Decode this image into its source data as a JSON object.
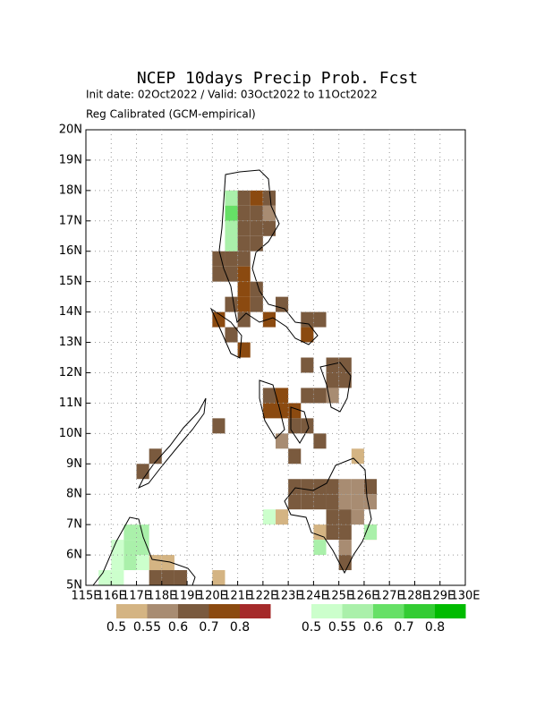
{
  "chart_data": {
    "type": "gridmap",
    "title": "NCEP 10days Precip Prob. Fcst",
    "subtitle": "Init date: 02Oct2022 / Valid: 03Oct2022 to 11Oct2022",
    "subtitle2": "Reg Calibrated (GCM-empirical)",
    "xlim": [
      115,
      130
    ],
    "ylim": [
      5,
      20
    ],
    "cell": 0.5,
    "grid": true,
    "xticks": [
      {
        "value": 115,
        "label": "115E"
      },
      {
        "value": 116,
        "label": "116E"
      },
      {
        "value": 117,
        "label": "117E"
      },
      {
        "value": 118,
        "label": "118E"
      },
      {
        "value": 119,
        "label": "119E"
      },
      {
        "value": 120,
        "label": "120E"
      },
      {
        "value": 121,
        "label": "121E"
      },
      {
        "value": 122,
        "label": "122E"
      },
      {
        "value": 123,
        "label": "123E"
      },
      {
        "value": 124,
        "label": "124E"
      },
      {
        "value": 125,
        "label": "125E"
      },
      {
        "value": 126,
        "label": "126E"
      },
      {
        "value": 127,
        "label": "127E"
      },
      {
        "value": 128,
        "label": "128E"
      },
      {
        "value": 129,
        "label": "129E"
      },
      {
        "value": 130,
        "label": "130E"
      }
    ],
    "yticks": [
      {
        "value": 5,
        "label": "5N"
      },
      {
        "value": 6,
        "label": "6N"
      },
      {
        "value": 7,
        "label": "7N"
      },
      {
        "value": 8,
        "label": "8N"
      },
      {
        "value": 9,
        "label": "9N"
      },
      {
        "value": 10,
        "label": "10N"
      },
      {
        "value": 11,
        "label": "11N"
      },
      {
        "value": 12,
        "label": "12N"
      },
      {
        "value": 13,
        "label": "13N"
      },
      {
        "value": 14,
        "label": "14N"
      },
      {
        "value": 15,
        "label": "15N"
      },
      {
        "value": 16,
        "label": "16N"
      },
      {
        "value": 17,
        "label": "17N"
      },
      {
        "value": 18,
        "label": "18N"
      },
      {
        "value": 19,
        "label": "19N"
      },
      {
        "value": 20,
        "label": "20N"
      }
    ],
    "series": [
      {
        "levels": [
          0.5,
          0.55,
          0.6,
          0.7,
          0.8
        ],
        "colors": [
          "#d4b483",
          "#a88c72",
          "#7a5a3e",
          "#8b4a10",
          "#a52a2a"
        ],
        "cells": [
          [
            120.5,
            17.5,
            0.5
          ],
          [
            121,
            17.5,
            0.6
          ],
          [
            121.5,
            17.5,
            0.7
          ],
          [
            122,
            17.5,
            0.6
          ],
          [
            121,
            17,
            0.6
          ],
          [
            121.5,
            17,
            0.6
          ],
          [
            122,
            17,
            0.55
          ],
          [
            121,
            16.5,
            0.6
          ],
          [
            121.5,
            16.5,
            0.6
          ],
          [
            122,
            16.5,
            0.6
          ],
          [
            120.5,
            16,
            0.55
          ],
          [
            121,
            16,
            0.6
          ],
          [
            121.5,
            16,
            0.6
          ],
          [
            120,
            15.5,
            0.6
          ],
          [
            120.5,
            15.5,
            0.6
          ],
          [
            121,
            15.5,
            0.6
          ],
          [
            120,
            15,
            0.6
          ],
          [
            120.5,
            15,
            0.6
          ],
          [
            121,
            15,
            0.7
          ],
          [
            121,
            14.5,
            0.7
          ],
          [
            121.5,
            14.5,
            0.6
          ],
          [
            120.5,
            14,
            0.6
          ],
          [
            121,
            14,
            0.7
          ],
          [
            121.5,
            14,
            0.6
          ],
          [
            122.5,
            14,
            0.6
          ],
          [
            120,
            13.5,
            0.7
          ],
          [
            121,
            13.5,
            0.6
          ],
          [
            122,
            13.5,
            0.7
          ],
          [
            123.5,
            13.5,
            0.6
          ],
          [
            124,
            13.5,
            0.6
          ],
          [
            120.5,
            13,
            0.6
          ],
          [
            123.5,
            13,
            0.7
          ],
          [
            121,
            12.5,
            0.7
          ],
          [
            123.5,
            12,
            0.6
          ],
          [
            124.5,
            12,
            0.6
          ],
          [
            125,
            12,
            0.6
          ],
          [
            124.5,
            11.5,
            0.6
          ],
          [
            125,
            11.5,
            0.6
          ],
          [
            122,
            11,
            0.6
          ],
          [
            122.5,
            11,
            0.7
          ],
          [
            123.5,
            11,
            0.6
          ],
          [
            124,
            11,
            0.6
          ],
          [
            124.5,
            11,
            0.55
          ],
          [
            122,
            10.5,
            0.7
          ],
          [
            122.5,
            10.5,
            0.7
          ],
          [
            123,
            10.5,
            0.7
          ],
          [
            120,
            10,
            0.6
          ],
          [
            123,
            10,
            0.6
          ],
          [
            123.5,
            10,
            0.6
          ],
          [
            122.5,
            9.5,
            0.55
          ],
          [
            124,
            9.5,
            0.6
          ],
          [
            117.5,
            9,
            0.6
          ],
          [
            123,
            9,
            0.6
          ],
          [
            125.5,
            9,
            0.5
          ],
          [
            117,
            8.5,
            0.6
          ],
          [
            123,
            8,
            0.6
          ],
          [
            123.5,
            8,
            0.6
          ],
          [
            124,
            8,
            0.6
          ],
          [
            124.5,
            8,
            0.6
          ],
          [
            125,
            8,
            0.55
          ],
          [
            125.5,
            8,
            0.55
          ],
          [
            126,
            8,
            0.6
          ],
          [
            123,
            7.5,
            0.6
          ],
          [
            123.5,
            7.5,
            0.6
          ],
          [
            124,
            7.5,
            0.6
          ],
          [
            124.5,
            7.5,
            0.6
          ],
          [
            125,
            7.5,
            0.55
          ],
          [
            125.5,
            7.5,
            0.55
          ],
          [
            126,
            7.5,
            0.55
          ],
          [
            122.5,
            7,
            0.5
          ],
          [
            124.5,
            7,
            0.6
          ],
          [
            125,
            7,
            0.6
          ],
          [
            125.5,
            7,
            0.55
          ],
          [
            124,
            6.5,
            0.5
          ],
          [
            124.5,
            6.5,
            0.6
          ],
          [
            125,
            6.5,
            0.6
          ],
          [
            126,
            6.5,
            0.5
          ],
          [
            125,
            6,
            0.55
          ],
          [
            125,
            5.5,
            0.6
          ],
          [
            117.5,
            5.5,
            0.5
          ],
          [
            118,
            5.5,
            0.5
          ],
          [
            117.5,
            5,
            0.6
          ],
          [
            118,
            5,
            0.6
          ],
          [
            118.5,
            5,
            0.6
          ],
          [
            120,
            5,
            0.5
          ]
        ]
      },
      {
        "levels": [
          0.5,
          0.55,
          0.6,
          0.7,
          0.8
        ],
        "colors": [
          "#ccffcc",
          "#aaf0aa",
          "#66e066",
          "#33cc33",
          "#00bb00"
        ],
        "cells": [
          [
            120.5,
            17.5,
            0.55
          ],
          [
            120.5,
            17,
            0.6
          ],
          [
            120.5,
            16.5,
            0.55
          ],
          [
            120.5,
            16,
            0.55
          ],
          [
            116.5,
            6.5,
            0.55
          ],
          [
            117,
            6.5,
            0.55
          ],
          [
            116,
            6,
            0.5
          ],
          [
            116.5,
            6,
            0.55
          ],
          [
            117,
            6,
            0.55
          ],
          [
            116,
            5.5,
            0.5
          ],
          [
            116.5,
            5.5,
            0.55
          ],
          [
            117,
            5.5,
            0.5
          ],
          [
            115.5,
            5,
            0.5
          ],
          [
            116,
            5,
            0.5
          ],
          [
            122,
            7,
            0.5
          ],
          [
            124,
            6,
            0.55
          ],
          [
            126,
            6.5,
            0.55
          ]
        ]
      }
    ]
  }
}
